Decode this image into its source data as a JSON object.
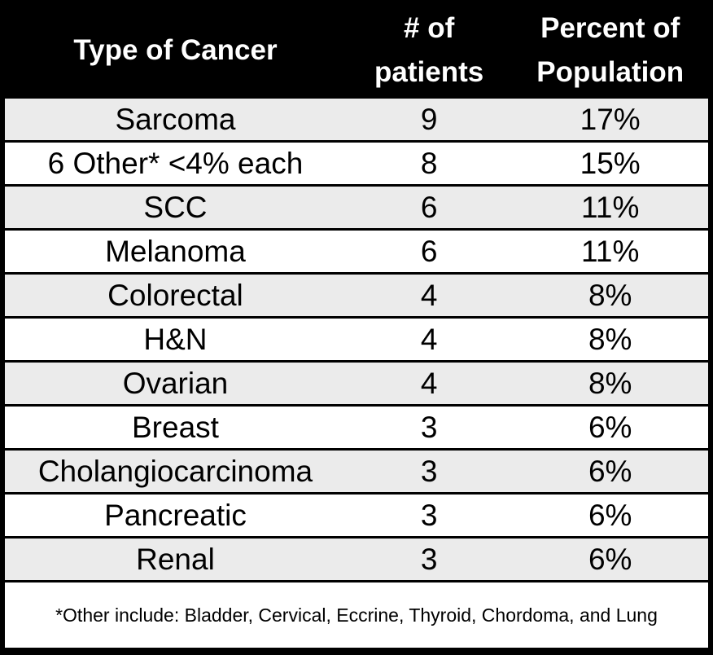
{
  "table": {
    "columns": [
      {
        "label": "Type of Cancer"
      },
      {
        "label": "# of\npatients"
      },
      {
        "label": "Percent of\nPopulation"
      }
    ],
    "rows": [
      {
        "type": "Sarcoma",
        "patients": "9",
        "percent": "17%"
      },
      {
        "type": "6 Other* <4% each",
        "patients": "8",
        "percent": "15%"
      },
      {
        "type": "SCC",
        "patients": "6",
        "percent": "11%"
      },
      {
        "type": "Melanoma",
        "patients": "6",
        "percent": "11%"
      },
      {
        "type": "Colorectal",
        "patients": "4",
        "percent": "8%"
      },
      {
        "type": "H&N",
        "patients": "4",
        "percent": "8%"
      },
      {
        "type": "Ovarian",
        "patients": "4",
        "percent": "8%"
      },
      {
        "type": "Breast",
        "patients": "3",
        "percent": "6%"
      },
      {
        "type": "Cholangiocarcinoma",
        "patients": "3",
        "percent": "6%"
      },
      {
        "type": "Pancreatic",
        "patients": "3",
        "percent": "6%"
      },
      {
        "type": "Renal",
        "patients": "3",
        "percent": "6%"
      }
    ],
    "footnote": "*Other include: Bladder, Cervical, Eccrine, Thyroid, Chordoma, and Lung"
  },
  "colors": {
    "header_bg": "#000000",
    "header_text": "#ffffff",
    "row_stripe_bg": "#ebebeb",
    "row_bg": "#ffffff",
    "border": "#000000",
    "body_text": "#000000"
  },
  "chart_data": {
    "type": "table",
    "title": "",
    "columns": [
      "Type of Cancer",
      "# of patients",
      "Percent of Population"
    ],
    "rows": [
      [
        "Sarcoma",
        9,
        "17%"
      ],
      [
        "6 Other* <4% each",
        8,
        "15%"
      ],
      [
        "SCC",
        6,
        "11%"
      ],
      [
        "Melanoma",
        6,
        "11%"
      ],
      [
        "Colorectal",
        4,
        "8%"
      ],
      [
        "H&N",
        4,
        "8%"
      ],
      [
        "Ovarian",
        4,
        "8%"
      ],
      [
        "Breast",
        3,
        "6%"
      ],
      [
        "Cholangiocarcinoma",
        3,
        "6%"
      ],
      [
        "Pancreatic",
        3,
        "6%"
      ],
      [
        "Renal",
        3,
        "6%"
      ]
    ],
    "footnote": "*Other include: Bladder, Cervical, Eccrine, Thyroid, Chordoma, and Lung",
    "layout_hints": {
      "header_style": "black background, white bold text, wrapped two-line headers for numeric columns",
      "stripes": "odd data rows light gray (#ebebeb), even rows white",
      "grid": "horizontal black separators only, thick black outer border"
    }
  }
}
